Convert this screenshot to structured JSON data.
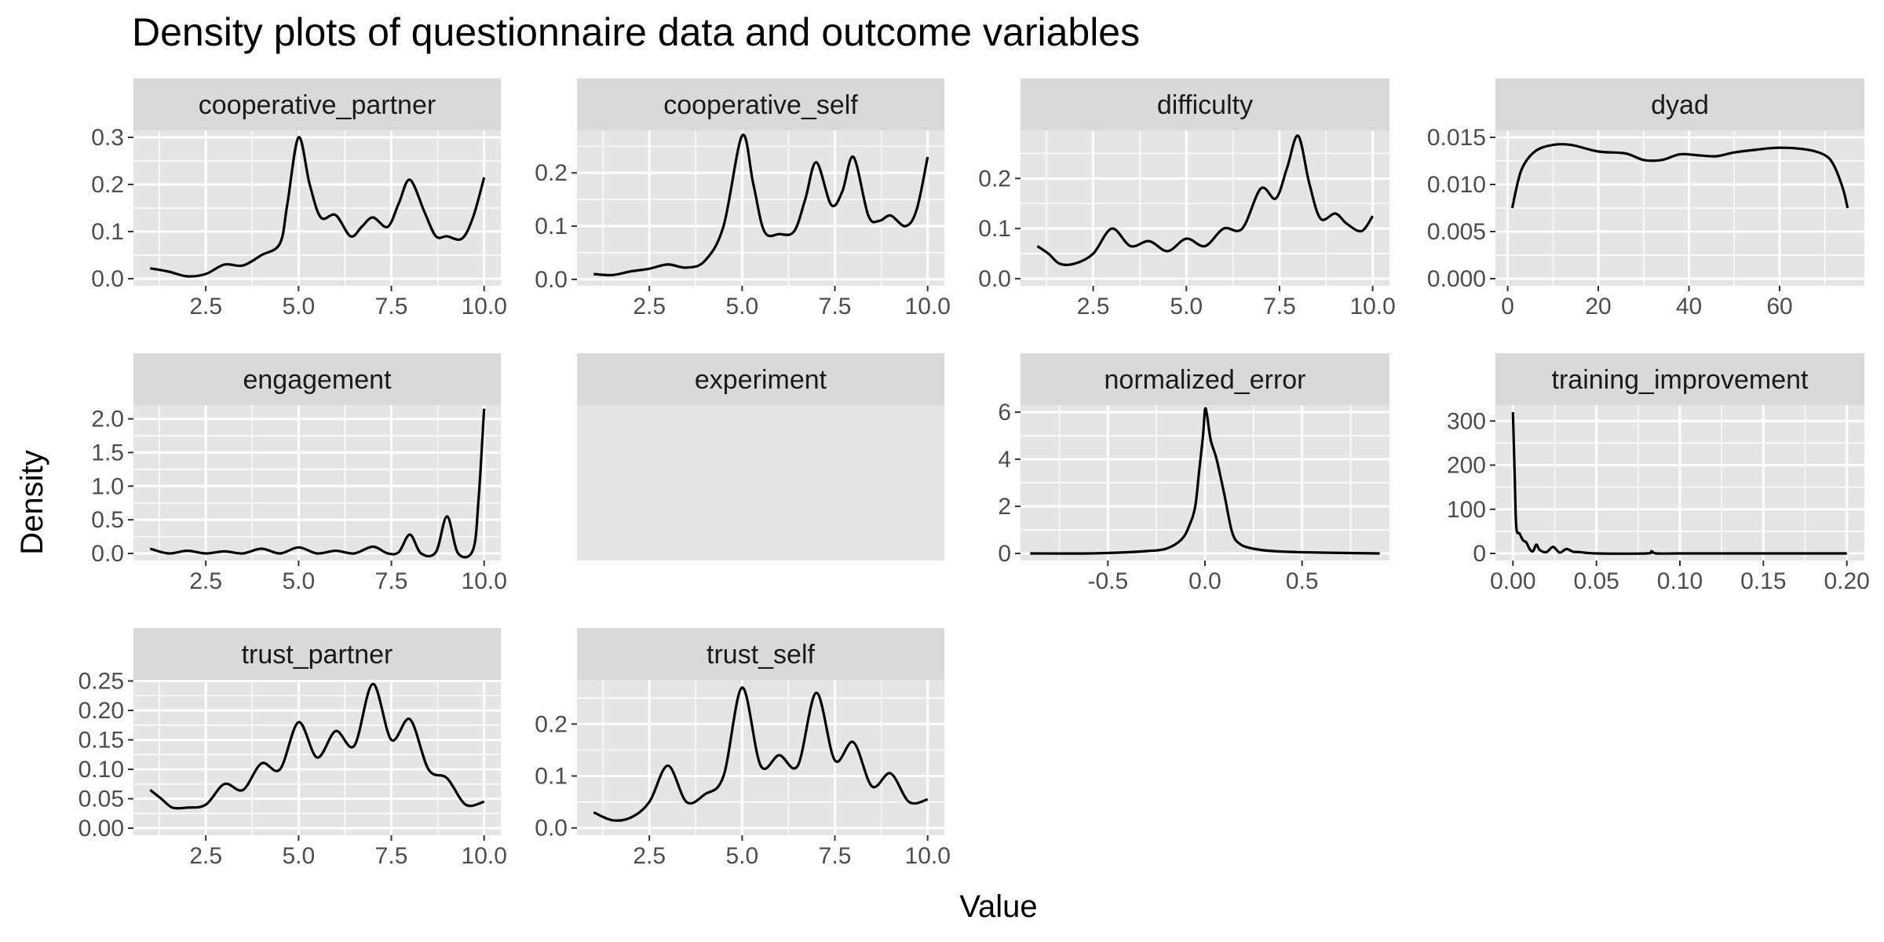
{
  "chart_data": {
    "type": "line",
    "title": "Density plots of questionnaire data and outcome variables",
    "xlabel": "Value",
    "ylabel": "Density",
    "grid": true,
    "facet_layout": "4 columns, 3 rows",
    "colors": {
      "panel_background": "#e5e5e5",
      "strip_background": "#d9d9d9",
      "gridline": "#ffffff",
      "line": "#000000"
    },
    "panels": [
      {
        "name": "cooperative_partner",
        "xlim": [
          0.55,
          10.45
        ],
        "ylim": [
          -0.015,
          0.315
        ],
        "xticks": [
          2.5,
          5.0,
          7.5,
          10.0
        ],
        "xtick_labels": [
          "2.5",
          "5.0",
          "7.5",
          "10.0"
        ],
        "yticks": [
          0.0,
          0.1,
          0.2,
          0.3
        ],
        "ytick_labels": [
          "0.0",
          "0.1",
          "0.2",
          "0.3"
        ],
        "x": [
          1.0,
          1.5,
          2.0,
          2.5,
          3.0,
          3.5,
          4.0,
          4.5,
          4.7,
          5.0,
          5.3,
          5.6,
          6.0,
          6.4,
          6.7,
          7.0,
          7.4,
          7.7,
          8.0,
          8.4,
          8.7,
          9.0,
          9.4,
          9.7,
          10.0
        ],
        "y": [
          0.022,
          0.015,
          0.005,
          0.01,
          0.03,
          0.028,
          0.05,
          0.075,
          0.16,
          0.3,
          0.2,
          0.13,
          0.135,
          0.09,
          0.11,
          0.13,
          0.11,
          0.16,
          0.21,
          0.14,
          0.09,
          0.09,
          0.085,
          0.13,
          0.215
        ]
      },
      {
        "name": "cooperative_self",
        "xlim": [
          0.55,
          10.45
        ],
        "ylim": [
          -0.012,
          0.28
        ],
        "xticks": [
          2.5,
          5.0,
          7.5,
          10.0
        ],
        "xtick_labels": [
          "2.5",
          "5.0",
          "7.5",
          "10.0"
        ],
        "yticks": [
          0.0,
          0.1,
          0.2
        ],
        "ytick_labels": [
          "0.0",
          "0.1",
          "0.2"
        ],
        "x": [
          1.0,
          1.5,
          2.0,
          2.5,
          3.0,
          3.5,
          4.0,
          4.5,
          5.0,
          5.3,
          5.6,
          6.0,
          6.4,
          6.7,
          7.0,
          7.4,
          7.7,
          8.0,
          8.4,
          8.7,
          9.0,
          9.4,
          9.7,
          10.0
        ],
        "y": [
          0.01,
          0.008,
          0.015,
          0.02,
          0.028,
          0.022,
          0.035,
          0.1,
          0.27,
          0.18,
          0.09,
          0.085,
          0.09,
          0.15,
          0.22,
          0.14,
          0.165,
          0.23,
          0.12,
          0.11,
          0.12,
          0.1,
          0.13,
          0.23
        ]
      },
      {
        "name": "difficulty",
        "xlim": [
          0.55,
          10.45
        ],
        "ylim": [
          -0.014,
          0.296
        ],
        "xticks": [
          2.5,
          5.0,
          7.5,
          10.0
        ],
        "xtick_labels": [
          "2.5",
          "5.0",
          "7.5",
          "10.0"
        ],
        "yticks": [
          0.0,
          0.1,
          0.2
        ],
        "ytick_labels": [
          "0.0",
          "0.1",
          "0.2"
        ],
        "x": [
          1.0,
          1.3,
          1.6,
          2.0,
          2.5,
          3.0,
          3.5,
          4.0,
          4.5,
          5.0,
          5.5,
          6.0,
          6.5,
          7.0,
          7.4,
          7.7,
          8.0,
          8.3,
          8.6,
          9.0,
          9.3,
          9.7,
          10.0
        ],
        "y": [
          0.065,
          0.05,
          0.03,
          0.03,
          0.05,
          0.1,
          0.065,
          0.075,
          0.055,
          0.08,
          0.065,
          0.1,
          0.1,
          0.18,
          0.16,
          0.22,
          0.285,
          0.19,
          0.12,
          0.13,
          0.11,
          0.095,
          0.125
        ]
      },
      {
        "name": "dyad",
        "xlim": [
          -2.7,
          78.7
        ],
        "ylim": [
          -0.00075,
          0.01575
        ],
        "xticks": [
          0,
          20,
          40,
          60
        ],
        "xtick_labels": [
          "0",
          "20",
          "40",
          "60"
        ],
        "yticks": [
          0.0,
          0.005,
          0.01,
          0.015
        ],
        "ytick_labels": [
          "0.000",
          "0.005",
          "0.010",
          "0.015"
        ],
        "x": [
          1,
          3,
          6,
          10,
          14,
          20,
          26,
          30,
          34,
          38,
          42,
          46,
          50,
          55,
          60,
          66,
          70,
          72,
          74,
          75
        ],
        "y": [
          0.0075,
          0.0115,
          0.0135,
          0.0142,
          0.0142,
          0.0135,
          0.0133,
          0.0126,
          0.0126,
          0.0132,
          0.0131,
          0.013,
          0.0134,
          0.0137,
          0.0139,
          0.0137,
          0.0131,
          0.012,
          0.0095,
          0.0075
        ]
      },
      {
        "name": "engagement",
        "xlim": [
          0.55,
          10.45
        ],
        "ylim": [
          -0.105,
          2.205
        ],
        "xticks": [
          2.5,
          5.0,
          7.5,
          10.0
        ],
        "xtick_labels": [
          "2.5",
          "5.0",
          "7.5",
          "10.0"
        ],
        "yticks": [
          0.0,
          0.5,
          1.0,
          1.5,
          2.0
        ],
        "ytick_labels": [
          "0.0",
          "0.5",
          "1.0",
          "1.5",
          "2.0"
        ],
        "x": [
          1.0,
          1.5,
          2.0,
          2.5,
          3.0,
          3.5,
          4.0,
          4.5,
          5.0,
          5.5,
          6.0,
          6.5,
          7.0,
          7.4,
          7.7,
          8.0,
          8.3,
          8.7,
          9.0,
          9.3,
          9.7,
          9.85,
          10.0
        ],
        "y": [
          0.07,
          0.0,
          0.04,
          0.0,
          0.03,
          0.0,
          0.07,
          0.0,
          0.09,
          0.0,
          0.04,
          0.0,
          0.1,
          0.0,
          0.02,
          0.28,
          0.0,
          0.02,
          0.55,
          0.0,
          0.05,
          0.8,
          2.15
        ]
      },
      {
        "name": "experiment",
        "empty": true,
        "xlim": [
          0,
          1
        ],
        "ylim": [
          0,
          1
        ],
        "xticks": [],
        "xtick_labels": [],
        "yticks": [],
        "ytick_labels": [],
        "x": [],
        "y": []
      },
      {
        "name": "normalized_error",
        "xlim": [
          -0.95,
          0.95
        ],
        "ylim": [
          -0.3,
          6.3
        ],
        "xticks": [
          -0.5,
          0.0,
          0.5
        ],
        "xtick_labels": [
          "-0.5",
          "0.0",
          "0.5"
        ],
        "yticks": [
          0,
          2,
          4,
          6
        ],
        "ytick_labels": [
          "0",
          "2",
          "4",
          "6"
        ],
        "x": [
          -0.9,
          -0.6,
          -0.4,
          -0.3,
          -0.2,
          -0.12,
          -0.08,
          -0.05,
          -0.03,
          -0.01,
          0.0,
          0.01,
          0.03,
          0.06,
          0.1,
          0.14,
          0.18,
          0.25,
          0.35,
          0.5,
          0.7,
          0.9
        ],
        "y": [
          0.0,
          0.0,
          0.05,
          0.1,
          0.2,
          0.6,
          1.2,
          2.0,
          3.5,
          5.0,
          6.1,
          5.9,
          4.8,
          4.0,
          2.5,
          0.9,
          0.4,
          0.2,
          0.1,
          0.05,
          0.02,
          0.0
        ]
      },
      {
        "name": "training_improvement",
        "xlim": [
          -0.0105,
          0.2105
        ],
        "ylim": [
          -16,
          336
        ],
        "xticks": [
          0.0,
          0.05,
          0.1,
          0.15,
          0.2
        ],
        "xtick_labels": [
          "0.00",
          "0.05",
          "0.10",
          "0.15",
          "0.20"
        ],
        "yticks": [
          0,
          100,
          200,
          300
        ],
        "ytick_labels": [
          "0",
          "100",
          "200",
          "300"
        ],
        "x": [
          0.0,
          0.001,
          0.002,
          0.004,
          0.006,
          0.008,
          0.01,
          0.012,
          0.014,
          0.016,
          0.02,
          0.024,
          0.028,
          0.032,
          0.036,
          0.04,
          0.05,
          0.08,
          0.083,
          0.086,
          0.1,
          0.15,
          0.2
        ],
        "y": [
          320,
          180,
          60,
          45,
          30,
          25,
          10,
          5,
          20,
          8,
          3,
          15,
          2,
          10,
          4,
          3,
          0,
          0,
          5,
          0,
          0,
          0,
          0
        ]
      },
      {
        "name": "trust_partner",
        "xlim": [
          0.55,
          10.45
        ],
        "ylim": [
          -0.012,
          0.252
        ],
        "xticks": [
          2.5,
          5.0,
          7.5,
          10.0
        ],
        "xtick_labels": [
          "2.5",
          "5.0",
          "7.5",
          "10.0"
        ],
        "yticks": [
          0.0,
          0.05,
          0.1,
          0.15,
          0.2,
          0.25
        ],
        "ytick_labels": [
          "0.00",
          "0.05",
          "0.10",
          "0.15",
          "0.20",
          "0.25"
        ],
        "x": [
          1.0,
          1.3,
          1.6,
          2.0,
          2.5,
          3.0,
          3.5,
          4.0,
          4.5,
          5.0,
          5.5,
          6.0,
          6.5,
          7.0,
          7.5,
          8.0,
          8.5,
          9.0,
          9.5,
          10.0
        ],
        "y": [
          0.065,
          0.05,
          0.035,
          0.035,
          0.04,
          0.075,
          0.065,
          0.11,
          0.1,
          0.18,
          0.12,
          0.165,
          0.14,
          0.245,
          0.15,
          0.185,
          0.1,
          0.085,
          0.04,
          0.045
        ]
      },
      {
        "name": "trust_self",
        "xlim": [
          0.55,
          10.45
        ],
        "ylim": [
          -0.014,
          0.285
        ],
        "xticks": [
          2.5,
          5.0,
          7.5,
          10.0
        ],
        "xtick_labels": [
          "2.5",
          "5.0",
          "7.5",
          "10.0"
        ],
        "yticks": [
          0.0,
          0.1,
          0.2
        ],
        "ytick_labels": [
          "0.0",
          "0.1",
          "0.2"
        ],
        "x": [
          1.0,
          1.5,
          2.0,
          2.5,
          3.0,
          3.5,
          4.0,
          4.5,
          5.0,
          5.5,
          6.0,
          6.5,
          7.0,
          7.5,
          8.0,
          8.5,
          9.0,
          9.5,
          10.0
        ],
        "y": [
          0.03,
          0.015,
          0.02,
          0.05,
          0.12,
          0.05,
          0.065,
          0.1,
          0.27,
          0.12,
          0.14,
          0.12,
          0.26,
          0.13,
          0.165,
          0.08,
          0.105,
          0.05,
          0.055
        ]
      }
    ]
  }
}
